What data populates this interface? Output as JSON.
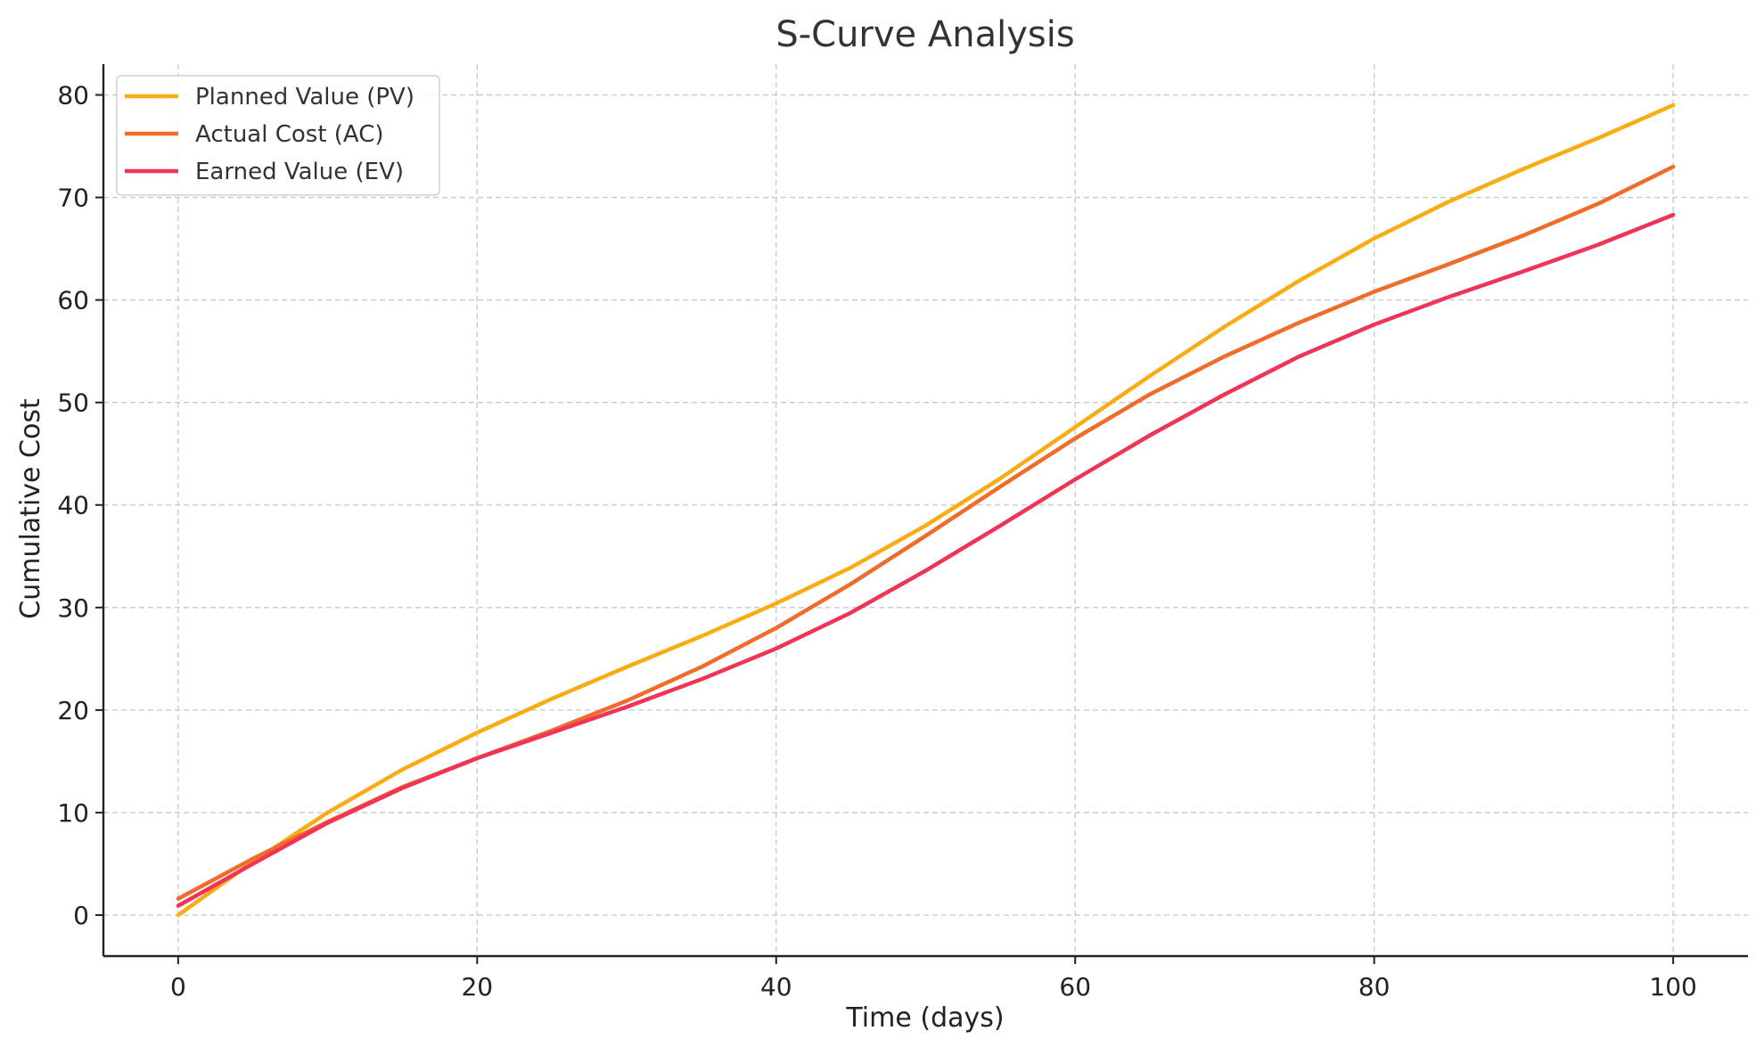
{
  "chart_data": {
    "type": "line",
    "title": "S-Curve Analysis",
    "xlabel": "Time (days)",
    "ylabel": "Cumulative Cost",
    "xlim": [
      -5,
      105
    ],
    "ylim": [
      -4,
      83
    ],
    "xticks": [
      0,
      20,
      40,
      60,
      80,
      100
    ],
    "yticks": [
      0,
      10,
      20,
      30,
      40,
      50,
      60,
      70,
      80
    ],
    "grid": true,
    "legend_position": "top-left",
    "x": [
      0,
      5,
      10,
      15,
      20,
      25,
      30,
      35,
      40,
      45,
      50,
      55,
      60,
      65,
      70,
      75,
      80,
      85,
      90,
      95,
      100
    ],
    "series": [
      {
        "name": "Planned Value (PV)",
        "color": "#F9AC14",
        "values": [
          0,
          5.2,
          10.0,
          14.2,
          17.8,
          21.1,
          24.2,
          27.2,
          30.4,
          33.9,
          38.0,
          42.6,
          47.6,
          52.6,
          57.4,
          61.9,
          66.0,
          69.6,
          72.8,
          75.8,
          79.0
        ]
      },
      {
        "name": "Actual Cost (AC)",
        "color": "#EF6C2A",
        "values": [
          1.6,
          5.5,
          9.1,
          12.5,
          15.3,
          18.0,
          20.9,
          24.2,
          28.0,
          32.3,
          37.0,
          41.8,
          46.5,
          50.8,
          54.5,
          57.8,
          60.8,
          63.5,
          66.3,
          69.4,
          73.0
        ]
      },
      {
        "name": "Earned Value (EV)",
        "color": "#EF3456",
        "values": [
          0.9,
          5.0,
          9.0,
          12.4,
          15.3,
          17.8,
          20.3,
          23.0,
          26.0,
          29.5,
          33.6,
          38.0,
          42.5,
          46.8,
          50.8,
          54.5,
          57.6,
          60.3,
          62.8,
          65.4,
          68.3
        ]
      }
    ]
  }
}
